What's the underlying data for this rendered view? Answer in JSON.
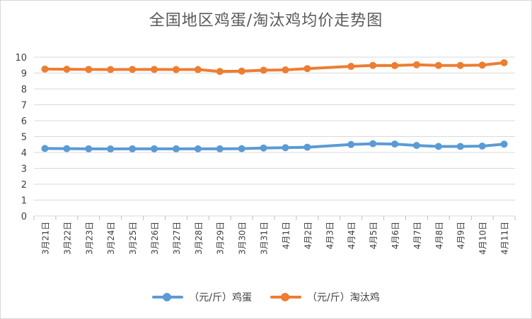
{
  "chart_data": {
    "type": "line",
    "title": "全国地区鸡蛋/淘汰鸡均价走势图",
    "categories": [
      "3月21日",
      "3月22日",
      "3月23日",
      "3月24日",
      "3月25日",
      "3月26日",
      "3月27日",
      "3月28日",
      "3月29日",
      "3月30日",
      "3月31日",
      "4月1日",
      "4月2日",
      "4月3日",
      "4月4日",
      "4月5日",
      "4月6日",
      "4月7日",
      "4月8日",
      "4月9日",
      "4月10日",
      "4月11日"
    ],
    "ylim": [
      0,
      10
    ],
    "yticks": [
      0,
      1,
      2,
      3,
      4,
      5,
      6,
      7,
      8,
      9,
      10
    ],
    "grid": true,
    "legend": "bottom",
    "series": [
      {
        "name": "（元/斤）鸡蛋",
        "color": "#5b9bd5",
        "values": [
          4.25,
          4.24,
          4.23,
          4.22,
          4.23,
          4.23,
          4.23,
          4.23,
          4.23,
          4.24,
          4.28,
          4.3,
          4.33,
          null,
          4.5,
          4.55,
          4.53,
          4.44,
          4.38,
          4.38,
          4.4,
          4.52
        ]
      },
      {
        "name": "（元/斤）淘汰鸡",
        "color": "#ed7d31",
        "values": [
          9.25,
          9.24,
          9.23,
          9.22,
          9.23,
          9.23,
          9.22,
          9.22,
          9.1,
          9.12,
          9.18,
          9.2,
          9.28,
          null,
          9.42,
          9.48,
          9.47,
          9.52,
          9.48,
          9.48,
          9.5,
          9.65
        ]
      }
    ]
  }
}
